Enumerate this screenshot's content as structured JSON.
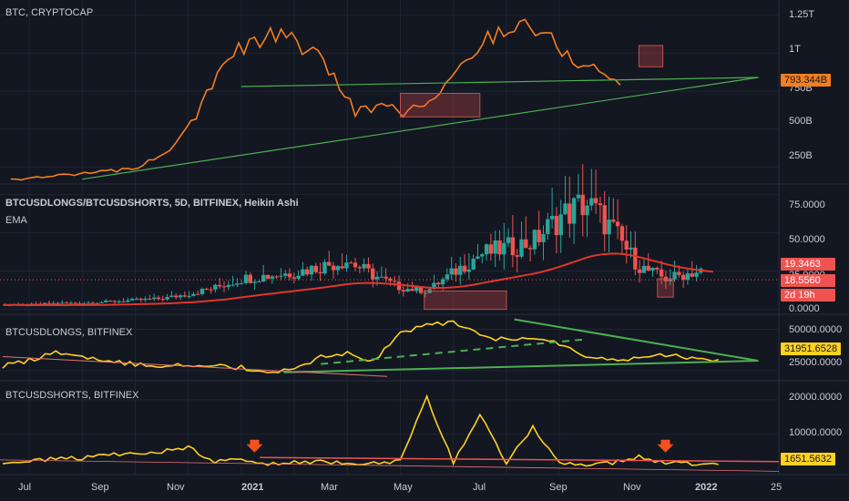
{
  "colors": {
    "background": "#131722",
    "grid": "#1f2431",
    "axis_text": "#b2b5be",
    "orange": "#f57f1e",
    "yellow": "#ffd21f",
    "green": "#26a69a",
    "red": "#ef5350",
    "ema": "#e0362b",
    "trend_green": "#4caf50",
    "trend_red": "#e57373"
  },
  "panes": {
    "p1": {
      "title": "BTC, CRYPTOCAP",
      "badge": "793.344B",
      "ticks": [
        "1.25T",
        "1T",
        "750B",
        "500B",
        "250B"
      ]
    },
    "p2": {
      "title": "BTCUSDLONGS/BTCUSDSHORTS, 5D, BITFINEX, Heikin Ashi",
      "subtitle": "EMA",
      "badge_top": "19.3463",
      "badge_mid": "18.5560",
      "badge_bottom": "2d 19h",
      "ticks": [
        "75.0000",
        "50.0000",
        "25.0000",
        "0.0000"
      ]
    },
    "p3": {
      "title": "BTCUSDLONGS, BITFINEX",
      "badge": "31951.6528",
      "ticks": [
        "50000.0000",
        "25000.0000"
      ]
    },
    "p4": {
      "title": "BTCUSDSHORTS, BITFINEX",
      "badge": "1651.5632",
      "ticks": [
        "20000.0000",
        "10000.0000"
      ]
    }
  },
  "x_axis": [
    "Jul",
    "Sep",
    "Nov",
    "2021",
    "Mar",
    "May",
    "Jul",
    "Sep",
    "Nov",
    "2022",
    "25"
  ],
  "chart_data": [
    {
      "type": "line",
      "title": "BTC, CRYPTOCAP",
      "x_unit": "months since 2020-06",
      "series": [
        {
          "name": "BTC, CRYPTOCAP",
          "color": "#f57f1e",
          "points": [
            [
              0,
              170
            ],
            [
              1,
              175
            ],
            [
              2,
              205
            ],
            [
              3,
              210
            ],
            [
              4,
              225
            ],
            [
              5,
              260
            ],
            [
              6,
              380
            ],
            [
              7,
              600
            ],
            [
              8,
              950
            ],
            [
              9,
              1060
            ],
            [
              10,
              1120
            ],
            [
              11,
              1050
            ],
            [
              12,
              900
            ],
            [
              13,
              620
            ],
            [
              14,
              640
            ],
            [
              15,
              610
            ],
            [
              16,
              700
            ],
            [
              17,
              900
            ],
            [
              18,
              1100
            ],
            [
              19,
              1200
            ],
            [
              20,
              1150
            ],
            [
              21,
              980
            ],
            [
              22,
              900
            ],
            [
              23,
              800
            ]
          ]
        }
      ],
      "ylim": [
        150,
        1350
      ],
      "ytick_values": [
        1250,
        1000,
        750,
        500,
        250
      ],
      "trendlines": [
        [
          [
            3,
            170
          ],
          [
            28.5,
            840
          ]
        ],
        [
          [
            9,
            780
          ],
          [
            28.5,
            840
          ]
        ]
      ],
      "boxes": [
        [
          15,
          580,
          18,
          735
        ],
        [
          24,
          910,
          24.9,
          1050
        ]
      ]
    },
    {
      "type": "candlestick",
      "title": "BTCUSDLONGS/BTCUSDSHORTS, 5D, BITFINEX, Heikin Ashi",
      "series": [
        {
          "name": "EMA",
          "color": "#e0362b"
        }
      ],
      "ylim": [
        -2,
        80
      ],
      "ytick_values": [
        75,
        50,
        25,
        0
      ],
      "monthly_levels": [
        3,
        3,
        4,
        4,
        5,
        6,
        7,
        10,
        14,
        20,
        22,
        24,
        28,
        32,
        22,
        14,
        12,
        24,
        36,
        40,
        44,
        60,
        70,
        52,
        28,
        20,
        24,
        26,
        22,
        19
      ]
    },
    {
      "type": "line",
      "title": "BTCUSDLONGS, BITFINEX",
      "series": [
        {
          "name": "BTCUSDLONGS, BITFINEX",
          "color": "#ffd21f",
          "monthly_values": [
            28000,
            31000,
            37000,
            33000,
            30000,
            29000,
            28000,
            29000,
            28000,
            27000,
            24000,
            25000,
            33000,
            36000,
            31000,
            48000,
            52000,
            55000,
            47000,
            43000,
            44000,
            41000,
            33000,
            31000,
            33000,
            34000,
            33000,
            32000
          ]
        }
      ],
      "ylim": [
        20000,
        58000
      ],
      "ytick_values": [
        50000,
        25000
      ],
      "trendlines": [
        [
          [
            10.6,
            24000
          ],
          [
            28.5,
            31000
          ]
        ],
        [
          [
            19.3,
            56000
          ],
          [
            28.5,
            31000
          ]
        ],
        [
          [
            0,
            33500
          ],
          [
            14.5,
            21500
          ]
        ]
      ]
    },
    {
      "type": "line",
      "title": "BTCUSDSHORTS, BITFINEX",
      "series": [
        {
          "name": "BTCUSDSHORTS, BITFINEX",
          "color": "#ffd21f",
          "monthly_values": [
            2000,
            2000,
            3000,
            3000,
            4000,
            4500,
            5000,
            6000,
            2000,
            2500,
            1500,
            2000,
            2000,
            1500,
            1800,
            2000,
            21000,
            1500,
            16000,
            1500,
            12000,
            1500,
            1000,
            1500,
            3500,
            1500,
            1500,
            1600
          ]
        }
      ],
      "ylim": [
        -1500,
        25000
      ],
      "ytick_values": [
        20000,
        10000
      ],
      "markers": [
        [
          9.5,
          6500
        ],
        [
          25,
          6500
        ]
      ]
    }
  ]
}
